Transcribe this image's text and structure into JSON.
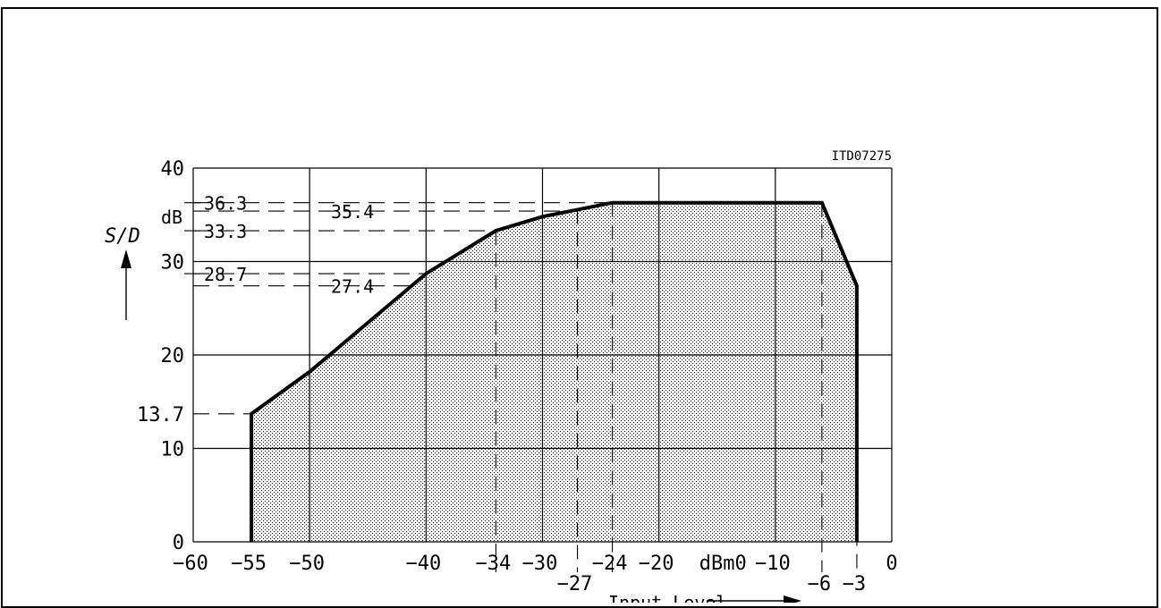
{
  "chart_data": {
    "type": "area",
    "figure_id": "ITD07275",
    "ylabel": "S/D",
    "ylabel_unit": "dB",
    "xlabel": "Input Level",
    "x_unit_label": "dBm0",
    "xlim": [
      -60,
      0
    ],
    "ylim": [
      0,
      40
    ],
    "grid": true,
    "x_major_ticks": [
      -60,
      -50,
      -40,
      -30,
      -20,
      -10,
      0
    ],
    "y_major_ticks": [
      0,
      10,
      20,
      30,
      40
    ],
    "x_tick_labels": [
      {
        "value": -60,
        "text": "−60",
        "row": "top"
      },
      {
        "value": -55,
        "text": "−55",
        "row": "top"
      },
      {
        "value": -50,
        "text": "−50",
        "row": "top"
      },
      {
        "value": -40,
        "text": "−40",
        "row": "top"
      },
      {
        "value": -34,
        "text": "−34",
        "row": "top"
      },
      {
        "value": -30,
        "text": "−30",
        "row": "top"
      },
      {
        "value": -27,
        "text": "−27",
        "row": "bottom"
      },
      {
        "value": -24,
        "text": "−24",
        "row": "top"
      },
      {
        "value": -20,
        "text": "−20",
        "row": "top"
      },
      {
        "value": -10,
        "text": "−10",
        "row": "top"
      },
      {
        "value": -6,
        "text": "−6",
        "row": "bottom"
      },
      {
        "value": -3,
        "text": "−3",
        "row": "bottom"
      },
      {
        "value": 0,
        "text": "0",
        "row": "top"
      }
    ],
    "y_tick_labels": [
      {
        "value": 0,
        "text": "0"
      },
      {
        "value": 10,
        "text": "10"
      },
      {
        "value": 13.7,
        "text": "13.7"
      },
      {
        "value": 20,
        "text": "20"
      },
      {
        "value": 30,
        "text": "30"
      },
      {
        "value": 40,
        "text": "40"
      }
    ],
    "reference_levels": [
      {
        "value": 36.3,
        "text": "36.3",
        "label_side": "outside"
      },
      {
        "value": 35.4,
        "text": "35.4",
        "label_side": "inside"
      },
      {
        "value": 33.3,
        "text": "33.3",
        "label_side": "outside"
      },
      {
        "value": 28.7,
        "text": "28.7",
        "label_side": "outside"
      },
      {
        "value": 27.4,
        "text": "27.4",
        "label_side": "inside"
      },
      {
        "value": 13.7,
        "text": "",
        "label_side": "outside"
      }
    ],
    "vertical_reference_x": [
      -34,
      -27,
      -24,
      -6,
      -3
    ],
    "boundary": {
      "x": [
        -55,
        -55,
        -50,
        -40,
        -34,
        -30,
        -24,
        -6,
        -3,
        -3
      ],
      "y": [
        0,
        13.7,
        18.2,
        28.7,
        33.3,
        34.8,
        36.3,
        36.3,
        27.4,
        0
      ]
    },
    "colors": {
      "line": "#000000",
      "fill_dots": "#000000",
      "background": "#ffffff"
    }
  }
}
